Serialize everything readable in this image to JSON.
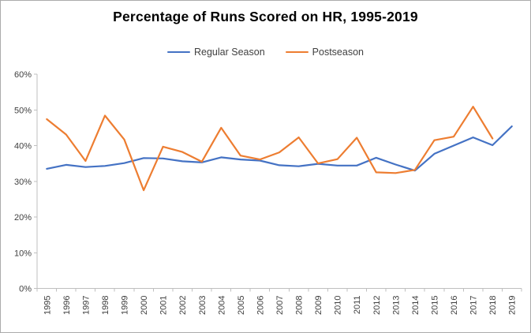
{
  "chart": {
    "title": "Percentage of Runs Scored on HR, 1995-2019"
  },
  "chart_data": {
    "type": "line",
    "title": "Percentage of Runs Scored on HR, 1995-2019",
    "xlabel": "",
    "ylabel": "",
    "categories": [
      "1995",
      "1996",
      "1997",
      "1998",
      "1999",
      "2000",
      "2001",
      "2002",
      "2003",
      "2004",
      "2005",
      "2006",
      "2007",
      "2008",
      "2009",
      "2010",
      "2011",
      "2012",
      "2013",
      "2014",
      "2015",
      "2016",
      "2017",
      "2018",
      "2019"
    ],
    "series": [
      {
        "name": "Regular Season",
        "color": "#4472C4",
        "values": [
          33.5,
          34.6,
          34.0,
          34.3,
          35.1,
          36.5,
          36.4,
          35.6,
          35.3,
          36.7,
          36.1,
          35.8,
          34.5,
          34.2,
          34.9,
          34.4,
          34.4,
          36.6,
          34.7,
          33.0,
          37.7,
          40.0,
          42.3,
          40.1,
          45.4
        ]
      },
      {
        "name": "Postseason",
        "color": "#ED7D31",
        "values": [
          47.4,
          43.1,
          35.7,
          48.4,
          41.7,
          27.5,
          39.7,
          38.2,
          35.5,
          45.0,
          37.2,
          36.1,
          38.1,
          42.3,
          35.0,
          36.2,
          42.2,
          32.5,
          32.3,
          33.2,
          41.5,
          42.5,
          50.9,
          42.0,
          null
        ]
      }
    ],
    "ylim": [
      0,
      60
    ],
    "ytick_step": 10,
    "ytick_labels": [
      "0%",
      "10%",
      "20%",
      "30%",
      "40%",
      "50%",
      "60%"
    ],
    "grid": false,
    "legend_position": "top",
    "axis_color": "#BFBFBF",
    "label_color": "#404040"
  }
}
